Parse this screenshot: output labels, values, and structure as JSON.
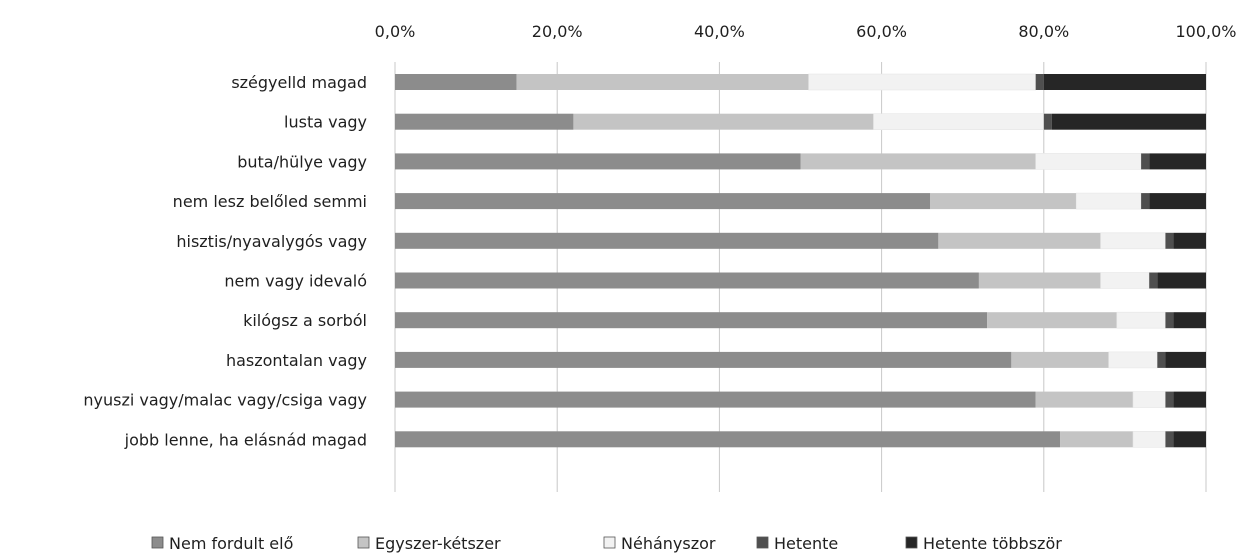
{
  "chart_data": {
    "type": "bar",
    "orientation": "horizontal",
    "stacked": true,
    "title": "",
    "xlabel": "",
    "ylabel": "",
    "xlim": [
      0,
      100
    ],
    "x_ticks": [
      "0,0%",
      "20,0%",
      "40,0%",
      "60,0%",
      "80,0%",
      "100,0%"
    ],
    "categories": [
      "szégyelld magad",
      "lusta vagy",
      "buta/hülye vagy",
      "nem lesz belőled semmi",
      "hisztis/nyavalygós vagy",
      "nem vagy idevaló",
      "kilógsz a sorból",
      "haszontalan vagy",
      "nyuszi vagy/malac vagy/csiga vagy",
      "jobb lenne, ha elásnád magad"
    ],
    "series": [
      {
        "name": "Nem fordult elő",
        "values": [
          15,
          22,
          50,
          66,
          67,
          72,
          73,
          76,
          79,
          82
        ]
      },
      {
        "name": "Egyszer-kétszer",
        "values": [
          36,
          37,
          29,
          18,
          20,
          15,
          16,
          12,
          12,
          9
        ]
      },
      {
        "name": "Néhányszor",
        "values": [
          28,
          21,
          13,
          8,
          8,
          6,
          6,
          6,
          4,
          4
        ]
      },
      {
        "name": "Hetente",
        "values": [
          1,
          1,
          1,
          1,
          1,
          1,
          1,
          1,
          1,
          1
        ]
      },
      {
        "name": "Hetente többször",
        "values": [
          20,
          19,
          7,
          7,
          4,
          6,
          4,
          5,
          4,
          4
        ]
      }
    ],
    "colors": [
      "#8c8c8c",
      "#c4c4c4",
      "#f2f2f2",
      "#4f4f4f",
      "#262626"
    ],
    "grid": true,
    "legend_position": "bottom"
  }
}
